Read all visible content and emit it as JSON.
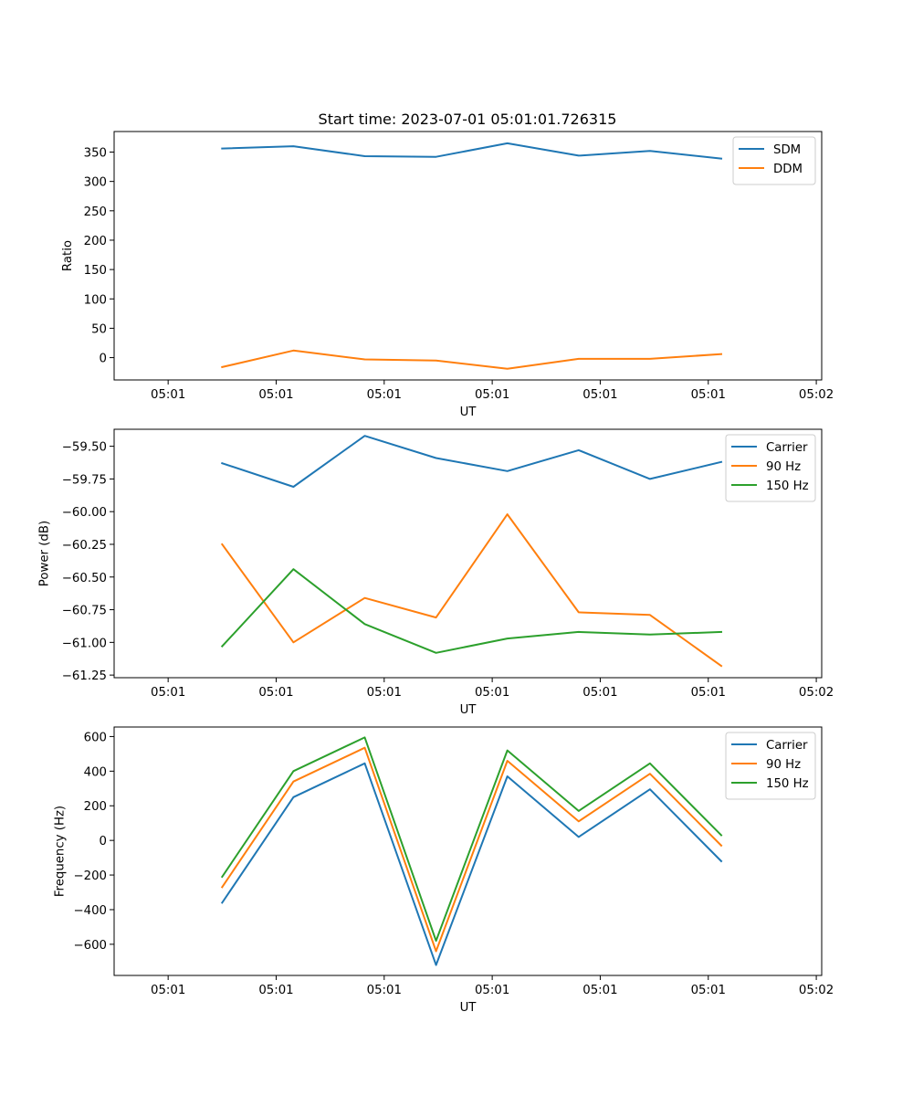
{
  "title": "Start time: 2023-07-01 05:01:01.726315",
  "chart_data": [
    {
      "type": "line",
      "title": "Start time: 2023-07-01 05:01:01.726315",
      "xlabel": "UT",
      "ylabel": "Ratio",
      "x": [
        0.5,
        1.16,
        1.82,
        2.48,
        3.14,
        3.8,
        4.46,
        5.12
      ],
      "xlim": [
        -0.5,
        6.05
      ],
      "x_ticks": [
        0,
        1,
        2,
        3,
        4,
        5,
        6
      ],
      "x_tick_labels": [
        "05:01",
        "05:01",
        "05:01",
        "05:01",
        "05:01",
        "05:01",
        "05:02"
      ],
      "ylim": [
        -38,
        385
      ],
      "y_ticks": [
        0,
        50,
        100,
        150,
        200,
        250,
        300,
        350
      ],
      "y_tick_labels": [
        "0",
        "50",
        "100",
        "150",
        "200",
        "250",
        "300",
        "350"
      ],
      "legend": "top-right",
      "series": [
        {
          "name": "SDM",
          "color": "#1f77b4",
          "values": [
            356,
            360,
            343,
            342,
            365,
            344,
            352,
            339
          ]
        },
        {
          "name": "DDM",
          "color": "#ff7f0e",
          "values": [
            -16,
            12,
            -3,
            -5,
            -19,
            -2,
            -2,
            6
          ]
        }
      ]
    },
    {
      "type": "line",
      "title": "",
      "xlabel": "UT",
      "ylabel": "Power (dB)",
      "x": [
        0.5,
        1.16,
        1.82,
        2.48,
        3.14,
        3.8,
        4.46,
        5.12
      ],
      "xlim": [
        -0.5,
        6.05
      ],
      "x_ticks": [
        0,
        1,
        2,
        3,
        4,
        5,
        6
      ],
      "x_tick_labels": [
        "05:01",
        "05:01",
        "05:01",
        "05:01",
        "05:01",
        "05:01",
        "05:02"
      ],
      "ylim": [
        -61.27,
        -59.37
      ],
      "y_ticks": [
        -61.25,
        -61.0,
        -60.75,
        -60.5,
        -60.25,
        -60.0,
        -59.75,
        -59.5
      ],
      "y_tick_labels": [
        "−61.25",
        "−61.00",
        "−60.75",
        "−60.50",
        "−60.25",
        "−60.00",
        "−59.75",
        "−59.50"
      ],
      "legend": "top-right",
      "series": [
        {
          "name": "Carrier",
          "color": "#1f77b4",
          "values": [
            -59.63,
            -59.81,
            -59.42,
            -59.59,
            -59.69,
            -59.53,
            -59.75,
            -59.62
          ]
        },
        {
          "name": "90 Hz",
          "color": "#ff7f0e",
          "values": [
            -60.25,
            -61.0,
            -60.66,
            -60.81,
            -60.02,
            -60.77,
            -60.79,
            -61.18
          ]
        },
        {
          "name": "150 Hz",
          "color": "#2ca02c",
          "values": [
            -61.03,
            -60.44,
            -60.86,
            -61.08,
            -60.97,
            -60.92,
            -60.94,
            -60.92
          ]
        }
      ]
    },
    {
      "type": "line",
      "title": "",
      "xlabel": "UT",
      "ylabel": "Frequency (Hz)",
      "x": [
        0.5,
        1.16,
        1.82,
        2.48,
        3.14,
        3.8,
        4.46,
        5.12
      ],
      "xlim": [
        -0.5,
        6.05
      ],
      "x_ticks": [
        0,
        1,
        2,
        3,
        4,
        5,
        6
      ],
      "x_tick_labels": [
        "05:01",
        "05:01",
        "05:01",
        "05:01",
        "05:01",
        "05:01",
        "05:02"
      ],
      "ylim": [
        -780,
        655
      ],
      "y_ticks": [
        -600,
        -400,
        -200,
        0,
        200,
        400,
        600
      ],
      "y_tick_labels": [
        "−600",
        "−400",
        "−200",
        "0",
        "200",
        "400",
        "600"
      ],
      "legend": "top-right",
      "series": [
        {
          "name": "Carrier",
          "color": "#1f77b4",
          "values": [
            -360,
            250,
            445,
            -720,
            370,
            20,
            295,
            -120
          ]
        },
        {
          "name": "90 Hz",
          "color": "#ff7f0e",
          "values": [
            -270,
            340,
            535,
            -640,
            460,
            110,
            385,
            -30
          ]
        },
        {
          "name": "150 Hz",
          "color": "#2ca02c",
          "values": [
            -210,
            400,
            595,
            -580,
            520,
            170,
            445,
            30
          ]
        }
      ]
    }
  ]
}
